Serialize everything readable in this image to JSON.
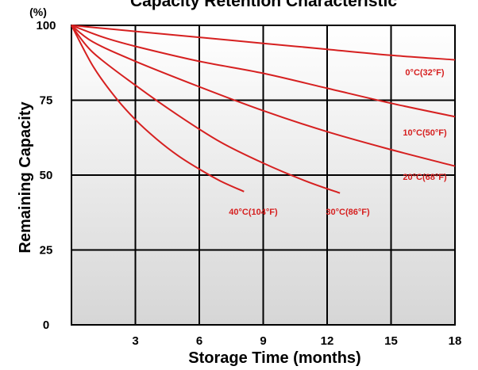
{
  "chart_data": {
    "type": "line",
    "title": "Capacity Retention Characteristic",
    "xlabel": "Storage Time (months)",
    "ylabel": "Remaining Capacity",
    "y_unit": "(%)",
    "xlim": [
      0,
      18
    ],
    "ylim": [
      0,
      100
    ],
    "x_ticks": [
      "3",
      "6",
      "9",
      "12",
      "15",
      "18"
    ],
    "y_ticks": [
      "0",
      "25",
      "50",
      "75",
      "100"
    ],
    "grid": true,
    "series": [
      {
        "name": "0°C(32°F)",
        "color": "#d62020",
        "x": [
          0,
          3,
          6,
          9,
          12,
          15,
          18
        ],
        "y": [
          100,
          98,
          96,
          94,
          92,
          90,
          88.5
        ]
      },
      {
        "name": "10°C(50°F)",
        "color": "#d62020",
        "x": [
          0,
          1.5,
          3,
          6,
          9,
          12,
          15,
          18
        ],
        "y": [
          100,
          96,
          93,
          88,
          84,
          79,
          74,
          69.5
        ]
      },
      {
        "name": "20°C(68°F)",
        "color": "#d62020",
        "x": [
          0,
          1,
          3,
          6,
          9,
          12,
          15,
          18
        ],
        "y": [
          100,
          94.5,
          88,
          79.5,
          71.5,
          64.5,
          58.5,
          53
        ]
      },
      {
        "name": "30°C(86°F)",
        "color": "#d62020",
        "x": [
          0,
          1,
          3,
          5,
          7,
          9,
          11,
          12.6
        ],
        "y": [
          100,
          91,
          80,
          70,
          61,
          54,
          48,
          44
        ]
      },
      {
        "name": "40°C(104°F)",
        "color": "#d62020",
        "x": [
          0,
          1,
          2,
          3,
          4,
          5,
          6,
          7,
          8.1
        ],
        "y": [
          100,
          86.5,
          76.5,
          68.5,
          62,
          56.5,
          52,
          48,
          44.5
        ]
      }
    ]
  }
}
